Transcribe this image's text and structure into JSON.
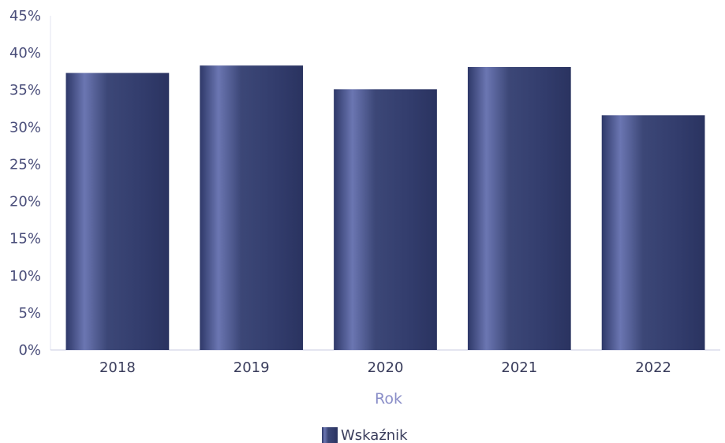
{
  "chart_data": {
    "type": "bar",
    "categories": [
      "2018",
      "2019",
      "2020",
      "2021",
      "2022"
    ],
    "series": [
      {
        "name": "Wskaźnik",
        "values": [
          37.3,
          38.3,
          35.1,
          38.1,
          31.6
        ]
      }
    ],
    "xlabel": "Rok",
    "ylabel": "",
    "ylim": [
      0,
      45
    ],
    "yticks": [
      0,
      5,
      10,
      15,
      20,
      25,
      30,
      35,
      40,
      45
    ],
    "ytick_format": "percent",
    "grid": false,
    "legend_position": "bottom-center",
    "colors": {
      "bar": "#3c4777",
      "bar_highlight": "#7e8ac4",
      "axis": "#c8cbe0"
    }
  }
}
